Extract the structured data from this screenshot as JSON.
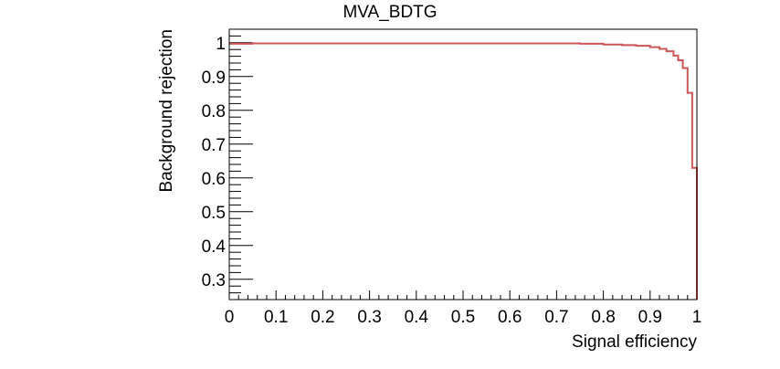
{
  "chart_data": {
    "type": "line",
    "title": "MVA_BDTG",
    "xlabel": "Signal efficiency",
    "ylabel": "Background rejection",
    "xlim": [
      0,
      1
    ],
    "ylim": [
      0.24,
      1.04
    ],
    "x_ticks": [
      "0",
      "0.1",
      "0.2",
      "0.3",
      "0.4",
      "0.5",
      "0.6",
      "0.7",
      "0.8",
      "0.9",
      "1"
    ],
    "y_ticks": [
      "0.3",
      "0.4",
      "0.5",
      "0.6",
      "0.7",
      "0.8",
      "0.9",
      "1"
    ],
    "grid": false,
    "line_color": "#cc5555",
    "series": [
      {
        "step": true,
        "x": [
          0,
          0.05,
          0.75,
          0.8,
          0.84,
          0.87,
          0.9,
          0.92,
          0.935,
          0.95,
          0.96,
          0.97,
          0.98,
          0.99,
          1.0
        ],
        "y": [
          0.997,
          0.998,
          0.997,
          0.995,
          0.993,
          0.991,
          0.987,
          0.982,
          0.975,
          0.962,
          0.948,
          0.925,
          0.852,
          0.63,
          0.28
        ]
      }
    ]
  }
}
